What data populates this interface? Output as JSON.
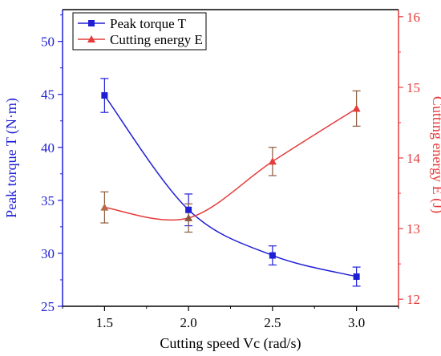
{
  "chart_data": {
    "type": "line",
    "title": "",
    "xlabel": "Cutting speed Vc (rad/s)",
    "xlim": [
      1.25,
      3.25
    ],
    "x_ticks": [
      "1.5",
      "2.0",
      "2.5",
      "3.0"
    ],
    "y_left": {
      "label": "Peak torque T (N·m)",
      "lim": [
        25,
        53
      ],
      "ticks": [
        "25",
        "30",
        "35",
        "40",
        "45",
        "50"
      ],
      "color": "#1f1fd6"
    },
    "y_right": {
      "label": "Cutting energy E (J)",
      "lim": [
        11.9,
        16.1
      ],
      "ticks": [
        "12",
        "13",
        "14",
        "15",
        "16"
      ],
      "color": "#e63b3b"
    },
    "series": [
      {
        "name": "Peak torque T",
        "axis": "left",
        "color": "#1f1fd6",
        "marker": "square",
        "x": [
          1.5,
          2.0,
          2.5,
          3.0
        ],
        "y": [
          44.9,
          34.1,
          29.8,
          27.8
        ],
        "err": [
          1.6,
          1.5,
          0.9,
          0.9
        ]
      },
      {
        "name": "Cutting energy E",
        "axis": "right",
        "color": "#e63b3b",
        "marker": "triangle",
        "x": [
          1.5,
          2.0,
          2.5,
          3.0
        ],
        "y": [
          13.3,
          13.15,
          13.95,
          14.7
        ],
        "err": [
          0.22,
          0.2,
          0.2,
          0.25
        ]
      }
    ],
    "legend": {
      "placement": "top-left",
      "items": [
        "Peak torque T",
        "Cutting energy E"
      ]
    },
    "grid": false
  }
}
